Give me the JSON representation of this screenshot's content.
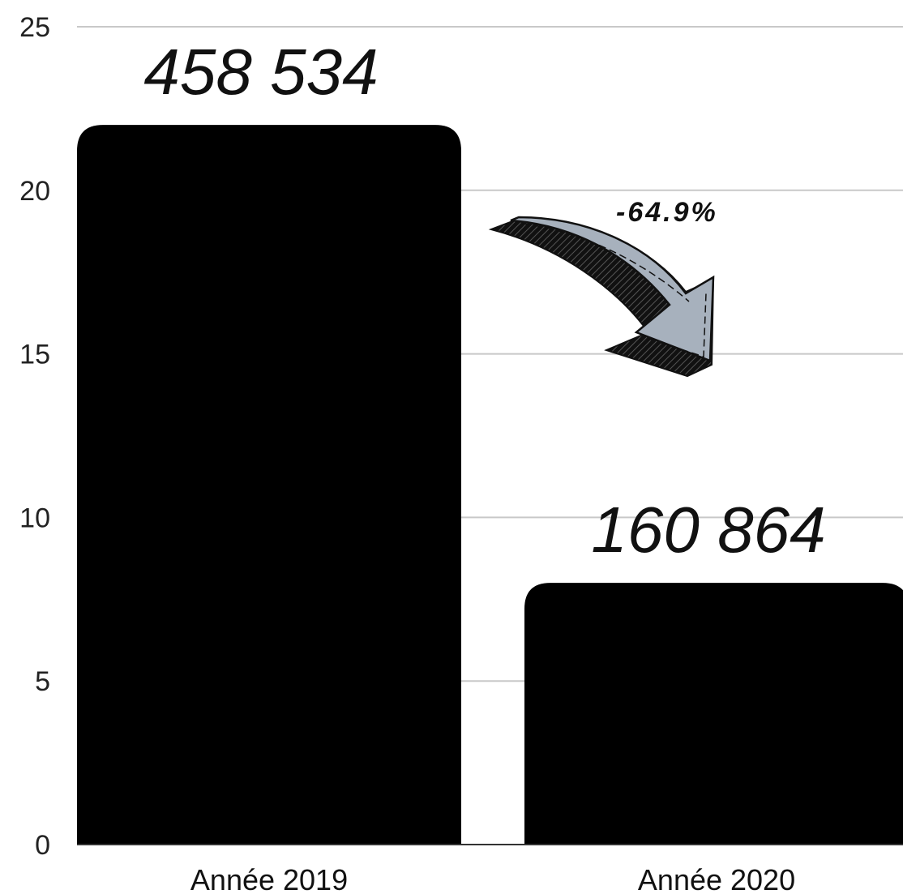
{
  "chart_data": {
    "type": "bar",
    "categories": [
      "Année 2019",
      "Année 2020"
    ],
    "values": [
      22,
      8
    ],
    "data_labels": [
      "458 534",
      "160 864"
    ],
    "ylim": [
      0,
      25
    ],
    "yticks": [
      "0",
      "5",
      "10",
      "15",
      "20",
      "25"
    ],
    "grid": true,
    "legend": "none",
    "colors": {
      "bar": "#000000",
      "grid": "#c8c8c8",
      "arrow_fill": "#a7b1bd",
      "arrow_shadow": "#1a1a1a"
    },
    "annotation": {
      "text": "-64.9%",
      "icon": "curved-down-arrow-icon"
    }
  }
}
